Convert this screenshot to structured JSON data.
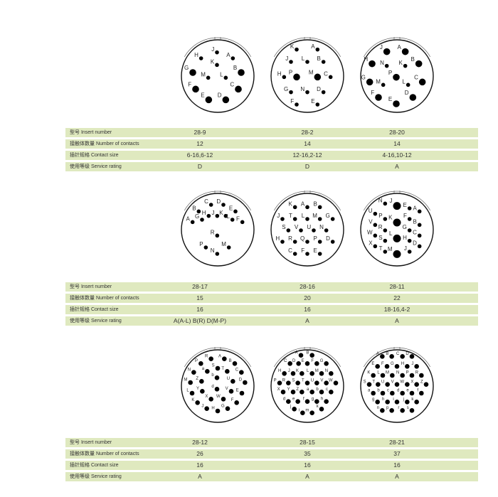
{
  "row_labels": {
    "insert_number": "型号 Insert number",
    "contacts": "接触体数量 Number of contacts",
    "contact_size": "插针规格 Contact size",
    "service_rating": "使用等级 Service rating"
  },
  "colors": {
    "row_bg": "#dfe9bf",
    "pin": "#000000"
  },
  "groups": [
    {
      "connectors": [
        {
          "insert": "28-9",
          "contacts": "12",
          "size": "6-16,6-12",
          "rating": "D",
          "pins": [
            "J",
            "H",
            "A",
            "K",
            "G",
            "B",
            "M",
            "L",
            "F",
            "C",
            "E",
            "D"
          ]
        },
        {
          "insert": "28-2",
          "contacts": "14",
          "size": "12-16,2-12",
          "rating": "D",
          "pins": [
            "K",
            "A",
            "J",
            "L",
            "B",
            "H",
            "P",
            "M",
            "C",
            "G",
            "N",
            "D",
            "F",
            "E"
          ]
        },
        {
          "insert": "28-20",
          "contacts": "14",
          "size": "4-16,10-12",
          "rating": "A",
          "pins": [
            "J",
            "A",
            "H",
            "N",
            "K",
            "B",
            "P",
            "G",
            "M",
            "L",
            "C",
            "F",
            "D",
            "E"
          ]
        }
      ]
    },
    {
      "connectors": [
        {
          "insert": "28-17",
          "contacts": "15",
          "size": "16",
          "rating": "A(A-L)  B(R)  D(M-P)",
          "pins": [
            "C",
            "D",
            "B",
            "E",
            "H",
            "J",
            "K",
            "G",
            "L",
            "A",
            "F",
            "R",
            "P",
            "M",
            "N"
          ]
        },
        {
          "insert": "28-16",
          "contacts": "20",
          "size": "16",
          "rating": "A",
          "pins": [
            "K",
            "A",
            "B",
            "J",
            "T",
            "L",
            "M",
            "G",
            "S",
            "V",
            "U",
            "N",
            "H",
            "R",
            "Q",
            "P",
            "D",
            "C",
            "F",
            "E"
          ]
        },
        {
          "insert": "28-11",
          "contacts": "22",
          "size": "18-16,4-2",
          "rating": "A",
          "pins": [
            "U",
            "V",
            "W",
            "X",
            "N",
            "P",
            "R",
            "S",
            "T",
            "J",
            "K",
            "L",
            "M",
            "E",
            "F",
            "G",
            "H",
            "J",
            "A",
            "B",
            "C",
            "D"
          ]
        }
      ]
    },
    {
      "connectors": [
        {
          "insert": "28-12",
          "contacts": "26",
          "size": "16",
          "rating": "A",
          "pins": [
            "R",
            "A",
            "P",
            "B",
            "S",
            "a",
            "T",
            "N",
            "C",
            "b",
            "Z",
            "U",
            "M",
            "D",
            "d",
            "Y",
            "V",
            "L",
            "E",
            "X",
            "W",
            "K",
            "F",
            "J",
            "H",
            "G"
          ]
        },
        {
          "insert": "28-15",
          "contacts": "35",
          "size": "16",
          "rating": "A",
          "pins": [
            "A",
            "B",
            "C",
            "D",
            "E",
            "F",
            "G",
            "H",
            "J",
            "K",
            "L",
            "M",
            "N",
            "P",
            "R",
            "S",
            "T",
            "U",
            "V",
            "W",
            "X",
            "Y",
            "Z",
            "a",
            "b",
            "c",
            "d",
            "e",
            "f",
            "g",
            "h",
            "j",
            "i",
            "m",
            "k"
          ]
        },
        {
          "insert": "28-21",
          "contacts": "37",
          "size": "16",
          "rating": "A",
          "pins": [
            "A",
            "B",
            "C",
            "D",
            "E",
            "F",
            "G",
            "H",
            "J",
            "K",
            "L",
            "M",
            "N",
            "P",
            "R",
            "S",
            "T",
            "U",
            "V",
            "W",
            "X",
            "Z",
            "a",
            "b",
            "c",
            "d",
            "e",
            "f",
            "g",
            "h",
            "i",
            "j",
            "k",
            "n",
            "p",
            "r",
            "s"
          ]
        }
      ]
    }
  ]
}
